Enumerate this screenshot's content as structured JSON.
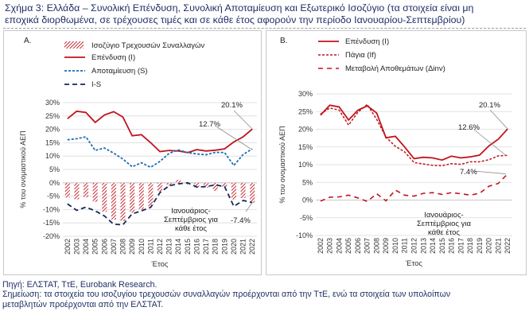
{
  "title": {
    "line1": "Σχήμα 3: Ελλάδα – Συνολική Επένδυση, Συνολική Αποταμίευση και Εξωτερικό Ισοζύγιο (τα στοιχεία είναι μη",
    "line2": "εποχικά διορθωμένα, σε τρέχουσες τιμές και σε κάθε έτος αφορούν την περίοδο Ιανουαρίου-Σεπτεμβρίου)"
  },
  "footer": {
    "source": "Πηγή: ΕΛΣΤΑΤ, ΤτΕ, Eurobank Research.",
    "note_line1": "Σημείωση: τα στοιχεία του ισοζυγίου τρεχουσών συναλλαγών προέρχονται από την ΤτΕ, ενώ τα στοιχεία των υπολοίπων",
    "note_line2": "μεταβλητών προέρχονται από την ΕΛΣΤΑΤ."
  },
  "colors": {
    "red": "#c0141e",
    "blue": "#1c6cb4",
    "navy": "#14285a",
    "grid": "#d9d9d9",
    "axis_text": "#333333",
    "annotation_line": "#8c8c8c"
  },
  "chart_data": [
    {
      "panel": "A.",
      "type": "bar+line",
      "x": [
        "2002",
        "2003",
        "2004",
        "2005",
        "2006",
        "2007",
        "2008",
        "2009",
        "2010",
        "2011",
        "2012",
        "2013",
        "2014",
        "2015",
        "2016",
        "2017",
        "2018",
        "2019",
        "2020",
        "2021",
        "2022"
      ],
      "ylabel": "% του ονομαστικού ΑΕΠ",
      "xlabel": "Έτος",
      "ylim": [
        -20,
        30
      ],
      "yticks": [
        "-20%",
        "-15%",
        "-10%",
        "-5%",
        "0%",
        "5%",
        "10%",
        "15%",
        "20%",
        "25%",
        "30%"
      ],
      "legend": [
        "Ισοζύγιο Τρεχουσών Συναλλαγών",
        "Επένδυση (I)",
        "Αποταμίευση (S)",
        "I-S"
      ],
      "bars": {
        "name": "Ισοζύγιο Τρεχουσών Συναλλαγών",
        "values": [
          -5.5,
          -6.2,
          -5.4,
          -7.1,
          -10.8,
          -13.8,
          -14.3,
          -11.2,
          -10.0,
          -8.8,
          -3.3,
          -1.1,
          1.1,
          -0.6,
          -1.7,
          -1.8,
          -3.0,
          -1.6,
          -6.2,
          -5.7,
          -7.4
        ]
      },
      "series": [
        {
          "name": "Επένδυση (I)",
          "values": [
            24.0,
            26.8,
            26.3,
            22.6,
            25.4,
            26.6,
            24.6,
            17.6,
            18.0,
            15.0,
            11.7,
            12.1,
            11.9,
            11.3,
            12.4,
            11.9,
            12.2,
            12.7,
            15.3,
            17.2,
            20.1
          ]
        },
        {
          "name": "Αποταμίευση (S)",
          "values": [
            16.1,
            16.5,
            17.2,
            12.1,
            13.0,
            11.1,
            8.9,
            6.0,
            7.5,
            5.8,
            8.0,
            11.0,
            12.3,
            11.3,
            10.8,
            10.5,
            11.4,
            11.3,
            6.5,
            10.6,
            12.7
          ]
        },
        {
          "name": "I-S",
          "values": [
            -7.9,
            -10.3,
            -9.1,
            -10.5,
            -12.4,
            -15.5,
            -15.7,
            -11.6,
            -10.5,
            -9.2,
            -3.7,
            -1.1,
            -0.4,
            0.0,
            -1.6,
            -1.4,
            -0.8,
            -1.4,
            -8.8,
            -6.6,
            -7.4
          ]
        }
      ],
      "annotations": [
        "20.1%",
        "12.7%",
        "-7.4%",
        "Ιανουάριος-",
        "Σεπτέμβριος για",
        "κάθε έτος"
      ]
    },
    {
      "panel": "B.",
      "type": "line",
      "x": [
        "2002",
        "2003",
        "2004",
        "2005",
        "2006",
        "2007",
        "2008",
        "2009",
        "2010",
        "2011",
        "2012",
        "2013",
        "2014",
        "2015",
        "2016",
        "2017",
        "2018",
        "2019",
        "2020",
        "2021",
        "2022"
      ],
      "ylabel": "% του ονομαστικού ΑΕΠ",
      "xlabel": "Έτος",
      "ylim": [
        -10,
        30
      ],
      "yticks": [
        "-10%",
        "-5%",
        "0%",
        "5%",
        "10%",
        "15%",
        "20%",
        "25%",
        "30%"
      ],
      "legend": [
        "Επένδυση (I)",
        "Πάγια (If)",
        "Μεταβολή Αποθεμάτων (Δinv)"
      ],
      "series": [
        {
          "name": "Επένδυση (I)",
          "values": [
            24.0,
            26.8,
            26.3,
            22.6,
            25.4,
            26.6,
            24.6,
            17.6,
            18.0,
            15.0,
            11.7,
            12.1,
            11.9,
            11.3,
            12.4,
            11.9,
            12.2,
            12.7,
            15.3,
            17.2,
            20.1
          ]
        },
        {
          "name": "Πάγια (If)",
          "values": [
            24.3,
            26.0,
            25.4,
            21.2,
            24.8,
            27.0,
            22.8,
            17.8,
            15.2,
            13.6,
            10.6,
            10.2,
            9.8,
            9.7,
            10.3,
            10.1,
            10.8,
            10.8,
            11.4,
            12.5,
            12.6
          ]
        },
        {
          "name": "Μεταβολή Αποθεμάτων (Δinv)",
          "values": [
            -0.3,
            0.8,
            0.9,
            1.4,
            0.6,
            -0.4,
            1.8,
            -0.2,
            2.8,
            1.4,
            1.1,
            1.9,
            2.1,
            1.6,
            2.1,
            1.8,
            1.4,
            1.9,
            3.9,
            4.7,
            7.4
          ]
        }
      ],
      "annotations": [
        "20.1%",
        "12.6%",
        "7.4%",
        "Ιανουάριος-",
        "Σεπτέμβριος για",
        "κάθε έτος"
      ]
    }
  ]
}
